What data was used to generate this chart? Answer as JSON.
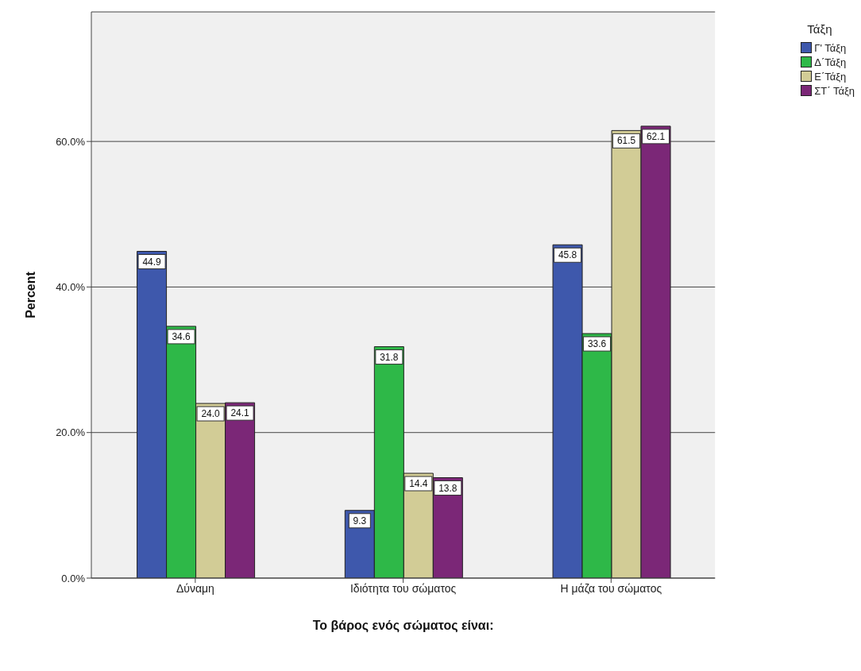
{
  "chart_data": {
    "type": "bar",
    "xlabel": "Το βάρος ενός σώματος είναι:",
    "ylabel": "Percent",
    "legend_title": "Τάξη",
    "categories": [
      "Δύναμη",
      "Ιδιότητα του σώματος",
      "Η μάζα του σώματος"
    ],
    "series": [
      {
        "name": "Γ' Τάξη",
        "color": "#3e58ac",
        "values": [
          44.9,
          9.3,
          45.8
        ]
      },
      {
        "name": "Δ΄Τάξη",
        "color": "#2eb848",
        "values": [
          34.6,
          31.8,
          33.6
        ]
      },
      {
        "name": "Ε΄Τάξη",
        "color": "#d2cc96",
        "values": [
          24.0,
          14.4,
          61.5
        ],
        "value_labels": [
          "24.0",
          "14.4",
          "61.5"
        ]
      },
      {
        "name": "ΣΤ΄ Τάξη",
        "color": "#7b2777",
        "values": [
          24.1,
          13.8,
          62.1
        ]
      }
    ],
    "ylim": [
      0,
      77.8
    ],
    "yticks": [
      {
        "value": 0,
        "label": "0.0%"
      },
      {
        "value": 20,
        "label": "20.0%"
      },
      {
        "value": 40,
        "label": "40.0%"
      },
      {
        "value": 60,
        "label": "60.0%"
      }
    ],
    "grid": "y",
    "legend": "top right",
    "data_labels": true
  }
}
